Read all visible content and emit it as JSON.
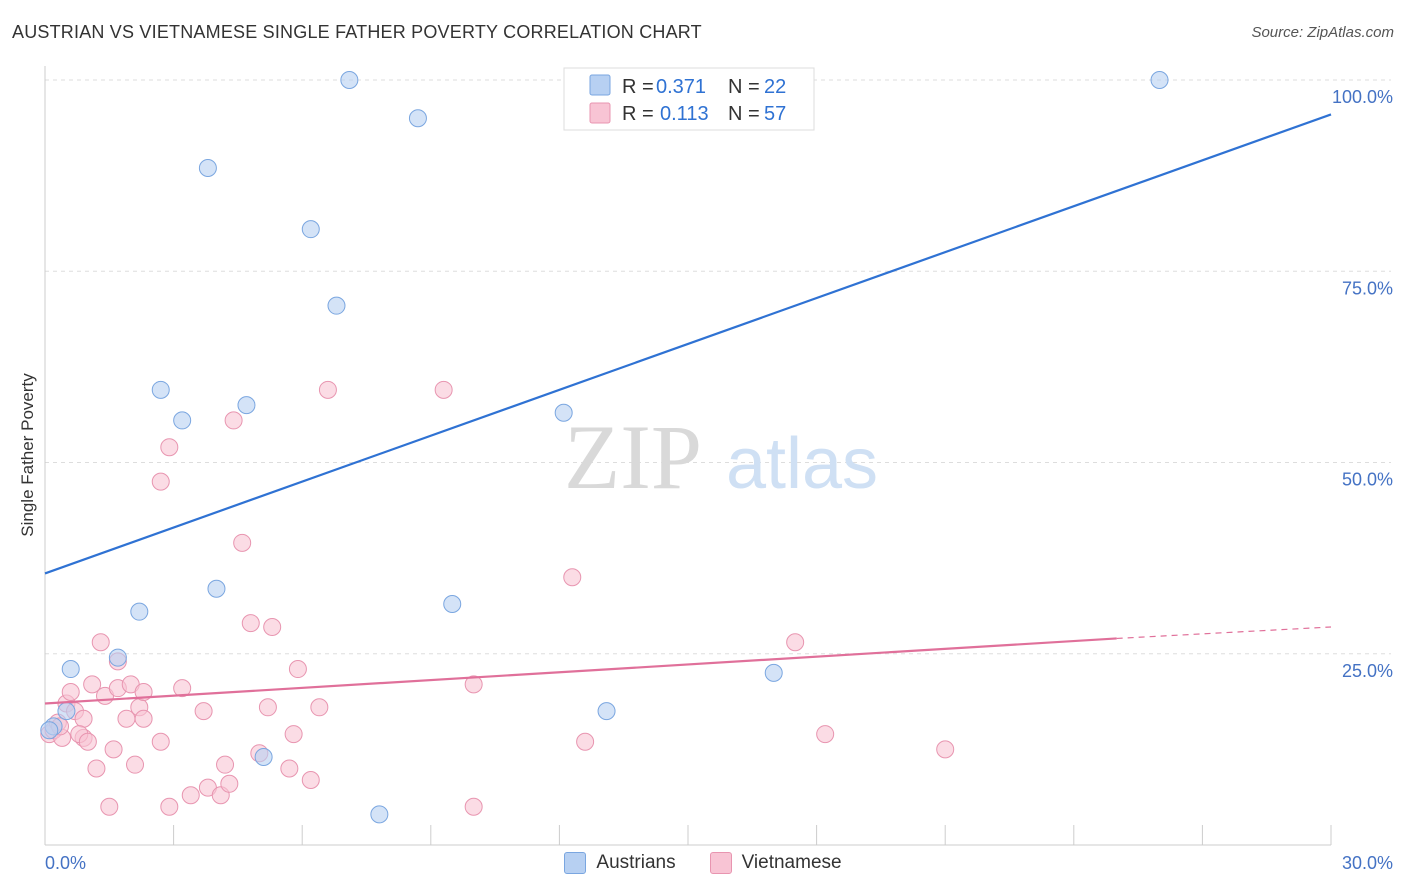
{
  "header": {
    "title": "AUSTRIAN VS VIETNAMESE SINGLE FATHER POVERTY CORRELATION CHART",
    "source": "Source: ZipAtlas.com"
  },
  "watermark": {
    "zip": "ZIP",
    "atlas": "atlas"
  },
  "legend_box": {
    "rows": [
      {
        "r_label": "R = ",
        "r_value": "0.371",
        "n_label": "N = ",
        "n_value": "22"
      },
      {
        "r_label": "R = ",
        "r_value": "0.113",
        "n_label": "N = ",
        "n_value": "57"
      }
    ]
  },
  "bottom_legend": {
    "items": [
      "Austrians",
      "Vietnamese"
    ]
  },
  "colors": {
    "austrians_fill": "#b7d0f2",
    "austrians_stroke": "#7aa6e0",
    "austrians_line": "#2f72d3",
    "vietnamese_fill": "#f8c4d4",
    "vietnamese_stroke": "#e895b0",
    "vietnamese_line": "#e0709a",
    "value_text": "#2f72d3",
    "grid": "#dddddd"
  },
  "chart_data": {
    "type": "scatter",
    "title": "AUSTRIAN VS VIETNAMESE SINGLE FATHER POVERTY CORRELATION CHART",
    "xlabel": "",
    "ylabel": "Single Father Poverty",
    "xlim": [
      0,
      30
    ],
    "ylim": [
      0,
      100
    ],
    "x_tick_labels": [
      "0.0%",
      "30.0%"
    ],
    "y_tick_values": [
      25,
      50,
      75,
      100
    ],
    "y_tick_labels": [
      "25.0%",
      "50.0%",
      "75.0%",
      "100.0%"
    ],
    "grid": true,
    "series": [
      {
        "name": "Austrians",
        "r": 0.371,
        "n": 22,
        "trend": {
          "x": [
            0,
            30
          ],
          "y": [
            35.5,
            95.5
          ]
        },
        "points": [
          [
            0.2,
            15.5
          ],
          [
            0.6,
            23
          ],
          [
            0.5,
            17.5
          ],
          [
            1.7,
            24.5
          ],
          [
            2.2,
            30.5
          ],
          [
            2.7,
            59.5
          ],
          [
            3.2,
            55.5
          ],
          [
            3.8,
            88.5
          ],
          [
            4.0,
            33.5
          ],
          [
            4.7,
            57.5
          ],
          [
            5.1,
            11.5
          ],
          [
            6.2,
            80.5
          ],
          [
            6.8,
            70.5
          ],
          [
            7.1,
            100
          ],
          [
            8.7,
            95
          ],
          [
            9.5,
            31.5
          ],
          [
            12.1,
            56.5
          ],
          [
            13.1,
            17.5
          ],
          [
            17.0,
            22.5
          ],
          [
            7.8,
            4
          ],
          [
            26.0,
            100
          ],
          [
            0.1,
            15
          ]
        ]
      },
      {
        "name": "Vietnamese",
        "r": 0.113,
        "n": 57,
        "trend": {
          "x": [
            0,
            25
          ],
          "y": [
            18.5,
            27
          ],
          "dash_to": [
            30,
            28.5
          ]
        },
        "points": [
          [
            0.1,
            14.5
          ],
          [
            0.2,
            15
          ],
          [
            0.3,
            16
          ],
          [
            0.4,
            14
          ],
          [
            0.5,
            18.5
          ],
          [
            0.6,
            20
          ],
          [
            0.7,
            17.5
          ],
          [
            0.9,
            16.5
          ],
          [
            0.9,
            14
          ],
          [
            1.1,
            21
          ],
          [
            1.2,
            10
          ],
          [
            1.3,
            26.5
          ],
          [
            1.4,
            19.5
          ],
          [
            1.5,
            5
          ],
          [
            1.6,
            12.5
          ],
          [
            1.7,
            20.5
          ],
          [
            1.7,
            24
          ],
          [
            1.9,
            16.5
          ],
          [
            2.0,
            21
          ],
          [
            2.1,
            10.5
          ],
          [
            2.2,
            18
          ],
          [
            2.3,
            20
          ],
          [
            2.3,
            16.5
          ],
          [
            2.7,
            13.5
          ],
          [
            2.7,
            47.5
          ],
          [
            2.9,
            52
          ],
          [
            2.9,
            5
          ],
          [
            3.2,
            20.5
          ],
          [
            3.4,
            6.5
          ],
          [
            3.7,
            17.5
          ],
          [
            3.8,
            7.5
          ],
          [
            4.1,
            6.5
          ],
          [
            4.2,
            10.5
          ],
          [
            4.3,
            8
          ],
          [
            4.4,
            55.5
          ],
          [
            4.6,
            39.5
          ],
          [
            4.8,
            29
          ],
          [
            5.0,
            12
          ],
          [
            5.2,
            18
          ],
          [
            5.3,
            28.5
          ],
          [
            5.7,
            10
          ],
          [
            5.8,
            14.5
          ],
          [
            5.9,
            23
          ],
          [
            6.2,
            8.5
          ],
          [
            6.4,
            18
          ],
          [
            6.6,
            59.5
          ],
          [
            9.3,
            59.5
          ],
          [
            10.0,
            5
          ],
          [
            10.0,
            21
          ],
          [
            12.3,
            35
          ],
          [
            12.6,
            13.5
          ],
          [
            17.5,
            26.5
          ],
          [
            18.2,
            14.5
          ],
          [
            21.0,
            12.5
          ],
          [
            0.35,
            15.5
          ],
          [
            0.8,
            14.5
          ],
          [
            1.0,
            13.5
          ]
        ]
      }
    ]
  }
}
